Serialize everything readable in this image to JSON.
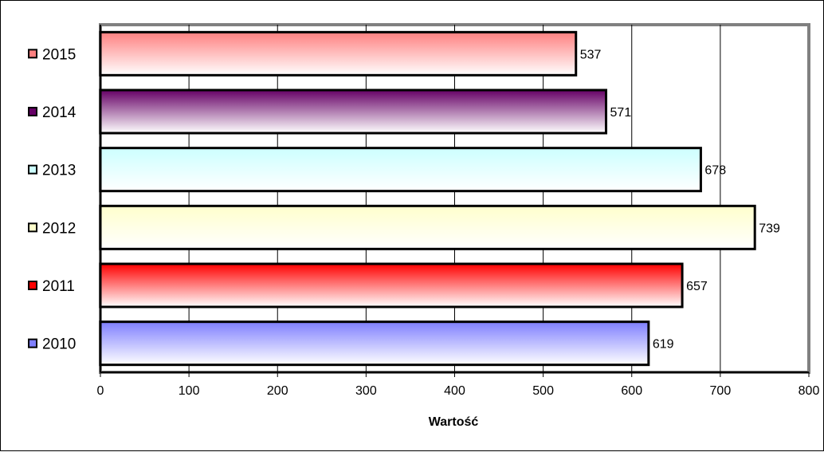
{
  "chart_data": {
    "type": "bar",
    "orientation": "horizontal",
    "categories": [
      "2010",
      "2011",
      "2012",
      "2013",
      "2014",
      "2015"
    ],
    "values": [
      619,
      657,
      739,
      678,
      571,
      537
    ],
    "bar_colors": [
      "#7f7fff",
      "#ff0000",
      "#ffffcc",
      "#ccffff",
      "#660066",
      "#ff8080"
    ],
    "data_labels": [
      "619",
      "657",
      "739",
      "678",
      "571",
      "537"
    ],
    "xlabel": "Wartość",
    "ylabel": "",
    "title": "",
    "xlim": [
      0,
      800
    ],
    "x_ticks": [
      0,
      100,
      200,
      300,
      400,
      500,
      600,
      700,
      800
    ],
    "x_tick_labels": [
      "0",
      "100",
      "200",
      "300",
      "400",
      "500",
      "600",
      "700",
      "800"
    ],
    "grid": true,
    "legend": "category labels with colored markers on left"
  }
}
